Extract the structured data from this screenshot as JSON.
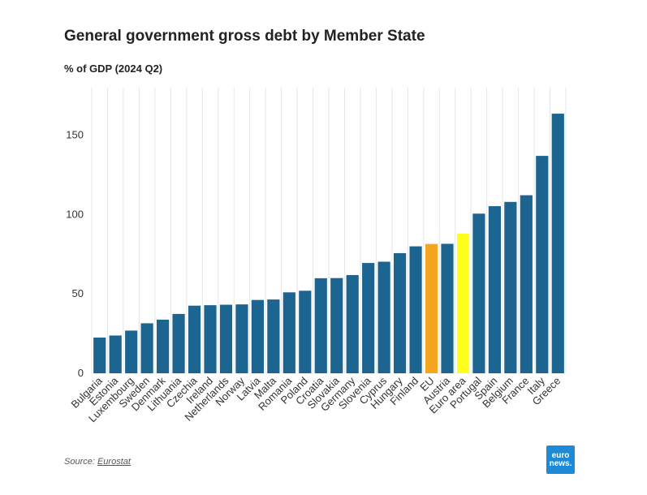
{
  "title": "General government gross debt by Member State",
  "subtitle": "% of GDP (2024 Q2)",
  "source": {
    "prefix": "Source: ",
    "name": "Eurostat"
  },
  "logo": {
    "line1": "euro",
    "line2": "news."
  },
  "colors": {
    "default": "#1c6590",
    "eu": "#f6a51e",
    "euro_area": "#ffff1e",
    "grid": "#e6e6e6",
    "text": "#333333"
  },
  "chart_data": {
    "type": "bar",
    "categories": [
      "Bulgaria",
      "Estonia",
      "Luxembourg",
      "Sweden",
      "Denmark",
      "Lithuania",
      "Czechia",
      "Ireland",
      "Netherlands",
      "Norway",
      "Latvia",
      "Malta",
      "Romania",
      "Poland",
      "Croatia",
      "Slovakia",
      "Germany",
      "Slovenia",
      "Cyprus",
      "Hungary",
      "Finland",
      "EU",
      "Austria",
      "Euro area",
      "Portugal",
      "Spain",
      "Belgium",
      "France",
      "Italy",
      "Greece"
    ],
    "values": [
      22.5,
      23.8,
      26.9,
      31.5,
      33.8,
      37.4,
      42.6,
      42.9,
      43.2,
      43.4,
      46.2,
      46.5,
      51.0,
      52.0,
      59.9,
      60.0,
      61.9,
      69.5,
      70.3,
      75.7,
      80.0,
      81.5,
      81.6,
      88.1,
      100.6,
      105.3,
      108.0,
      112.2,
      137.0,
      163.6
    ],
    "highlight": {
      "EU": "eu",
      "Euro area": "euro_area"
    },
    "ylim": [
      0,
      180
    ],
    "yticks": [
      0,
      50,
      100,
      150
    ],
    "grid": "vertical",
    "xlabel": "",
    "ylabel": ""
  }
}
